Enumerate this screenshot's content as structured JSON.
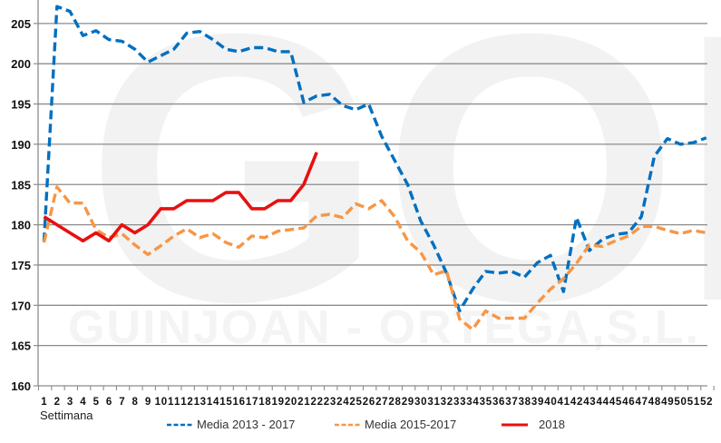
{
  "watermark": {
    "logo": "GOP",
    "company": "GUINJOAN - ORTEGA,S.L."
  },
  "chart_data": {
    "type": "line",
    "title": "",
    "xlabel": "Settimana",
    "ylabel": "",
    "ylim": [
      160,
      207
    ],
    "yticks": [
      160,
      165,
      170,
      175,
      180,
      185,
      190,
      195,
      200,
      205
    ],
    "grid": true,
    "legend_position": "bottom",
    "x": [
      1,
      2,
      3,
      4,
      5,
      6,
      7,
      8,
      9,
      10,
      11,
      12,
      13,
      14,
      15,
      16,
      17,
      18,
      19,
      20,
      21,
      22,
      23,
      24,
      25,
      26,
      27,
      28,
      29,
      30,
      31,
      32,
      33,
      34,
      35,
      36,
      37,
      38,
      39,
      40,
      41,
      42,
      43,
      44,
      45,
      46,
      47,
      48,
      49,
      50,
      51,
      52
    ],
    "series": [
      {
        "name": "Media 2013 - 2017",
        "color": "#0070c0",
        "style": "dashed",
        "values": [
          177.9,
          207.1,
          206.5,
          203.5,
          204.1,
          203.0,
          202.8,
          201.8,
          200.2,
          201.0,
          201.8,
          203.8,
          204.0,
          203.0,
          201.8,
          201.5,
          202.0,
          202.0,
          201.5,
          201.5,
          195.2,
          196.0,
          196.2,
          194.8,
          194.3,
          195.0,
          191.0,
          188.0,
          185.0,
          180.5,
          177.5,
          174.0,
          169.3,
          172.0,
          174.2,
          174.0,
          174.2,
          173.5,
          175.3,
          176.2,
          171.7,
          180.9,
          176.8,
          178.2,
          178.8,
          179.0,
          181.0,
          188.5,
          190.7,
          190.0,
          190.2,
          190.8
        ]
      },
      {
        "name": "Media 2015-2017",
        "color": "#f79646",
        "style": "dashed",
        "values": [
          177.8,
          184.7,
          182.7,
          182.7,
          179.4,
          178.4,
          178.9,
          177.5,
          176.3,
          177.4,
          178.6,
          179.5,
          178.4,
          178.9,
          177.8,
          177.2,
          178.6,
          178.4,
          179.2,
          179.4,
          179.6,
          181.1,
          181.3,
          180.9,
          182.6,
          182.0,
          183.0,
          181.0,
          178.0,
          176.6,
          173.8,
          174.3,
          168.3,
          167.0,
          169.3,
          168.4,
          168.4,
          168.4,
          170.3,
          172.0,
          173.3,
          175.2,
          177.5,
          177.3,
          178.0,
          178.6,
          179.8,
          179.8,
          179.3,
          178.9,
          179.3,
          179.0
        ]
      },
      {
        "name": "2018",
        "color": "#e81010",
        "style": "solid",
        "values": [
          181,
          180,
          179,
          178,
          179,
          178,
          180,
          179,
          180,
          182,
          182,
          183,
          183,
          183,
          184,
          184,
          182,
          182,
          183,
          183,
          185,
          189
        ]
      }
    ]
  }
}
